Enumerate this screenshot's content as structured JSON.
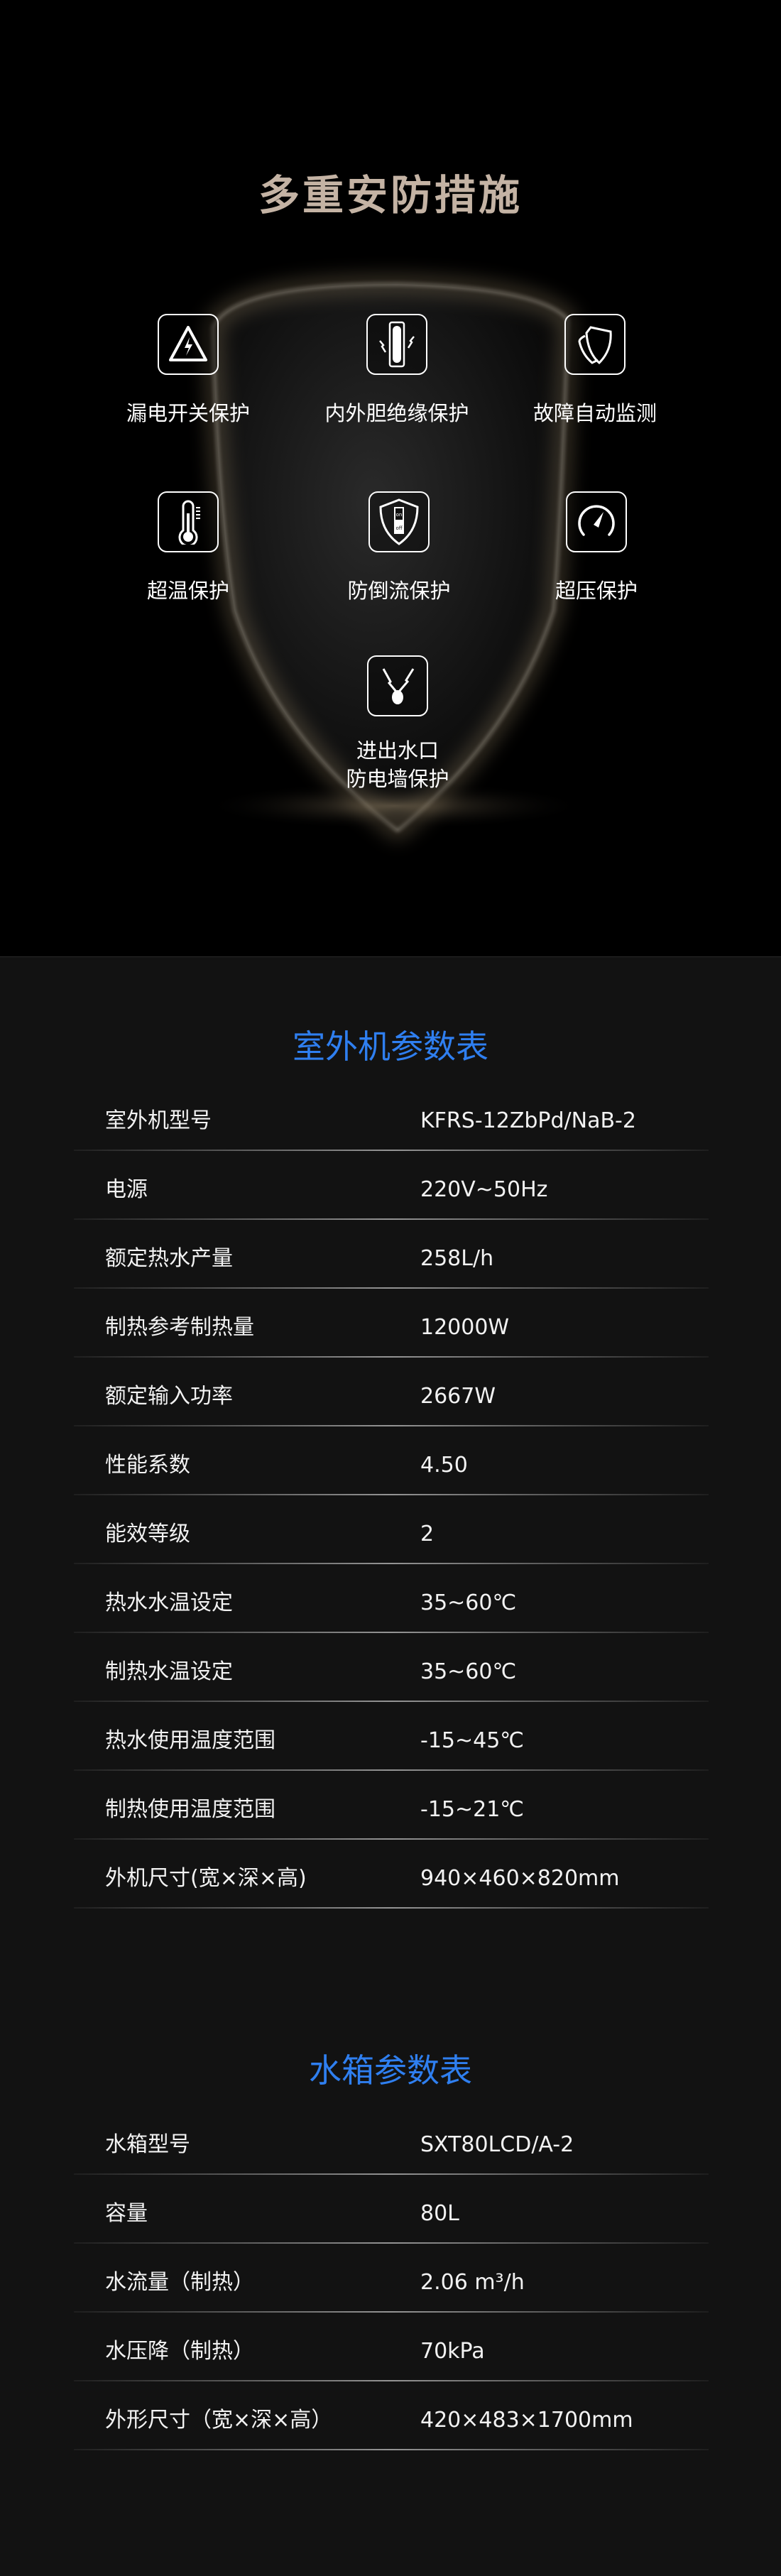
{
  "safety": {
    "title": "多重安防措施",
    "features": [
      {
        "icon": "leakage-warning-icon",
        "label": "漏电开关保护"
      },
      {
        "icon": "insulation-tank-icon",
        "label": "内外胆绝缘保护"
      },
      {
        "icon": "shield-monitor-icon",
        "label": "故障自动监测"
      },
      {
        "icon": "thermometer-icon",
        "label": "超温保护"
      },
      {
        "icon": "on-off-shield-icon",
        "label": "防倒流保护"
      },
      {
        "icon": "pressure-gauge-icon",
        "label": "超压保护"
      },
      {
        "icon": "electric-wall-icon",
        "label": "进出水口",
        "label2": "防电墙保护"
      }
    ]
  },
  "outdoor": {
    "title": "室外机参数表",
    "rows": [
      {
        "label": "室外机型号",
        "value": "KFRS-12ZbPd/NaB-2"
      },
      {
        "label": "电源",
        "value": "220V~50Hz"
      },
      {
        "label": "额定热水产量",
        "value": "258L/h"
      },
      {
        "label": "制热参考制热量",
        "value": "12000W"
      },
      {
        "label": "额定输入功率",
        "value": "2667W"
      },
      {
        "label": "性能系数",
        "value": "4.50"
      },
      {
        "label": "能效等级",
        "value": "2"
      },
      {
        "label": "热水水温设定",
        "value": "35~60℃"
      },
      {
        "label": "制热水温设定",
        "value": "35~60℃"
      },
      {
        "label": "热水使用温度范围",
        "value": "-15~45℃"
      },
      {
        "label": "制热使用温度范围",
        "value": "-15~21℃"
      },
      {
        "label": "外机尺寸(宽×深×高)",
        "value": "940×460×820mm"
      }
    ]
  },
  "tank": {
    "title": "水箱参数表",
    "rows": [
      {
        "label": "水箱型号",
        "value": "SXT80LCD/A-2"
      },
      {
        "label": "容量",
        "value": "80L"
      },
      {
        "label": "水流量（制热）",
        "value": "2.06 m³/h"
      },
      {
        "label": "水压降（制热）",
        "value": "70kPa"
      },
      {
        "label": "外形尺寸（宽×深×高）",
        "value": "420×483×1700mm"
      }
    ]
  },
  "colors": {
    "title_gold": "#c4b3a4",
    "table_title_blue": "#2f7ff0",
    "spec_bg": "#121212"
  }
}
